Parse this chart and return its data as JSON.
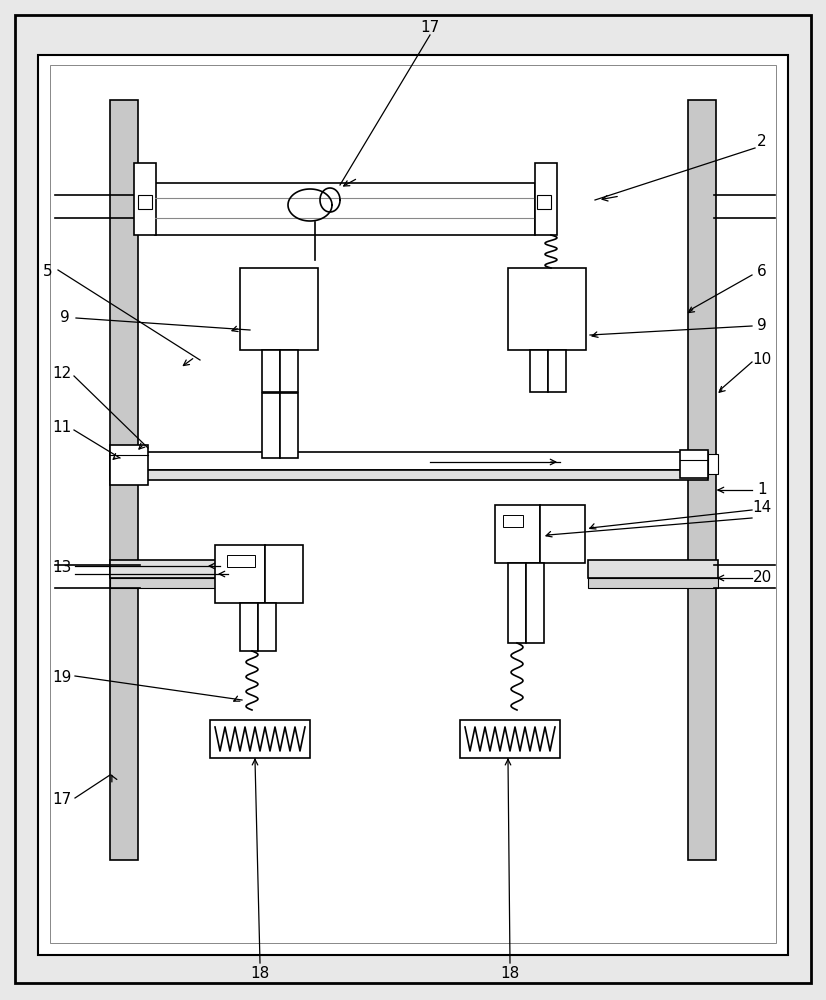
{
  "fig_width": 8.26,
  "fig_height": 10.0,
  "bg_outer": "#e8e8e8",
  "bg_inner": "#ffffff",
  "lc": "#000000",
  "gray_col": "#c8c8c8",
  "light_gray": "#e0e0e0"
}
